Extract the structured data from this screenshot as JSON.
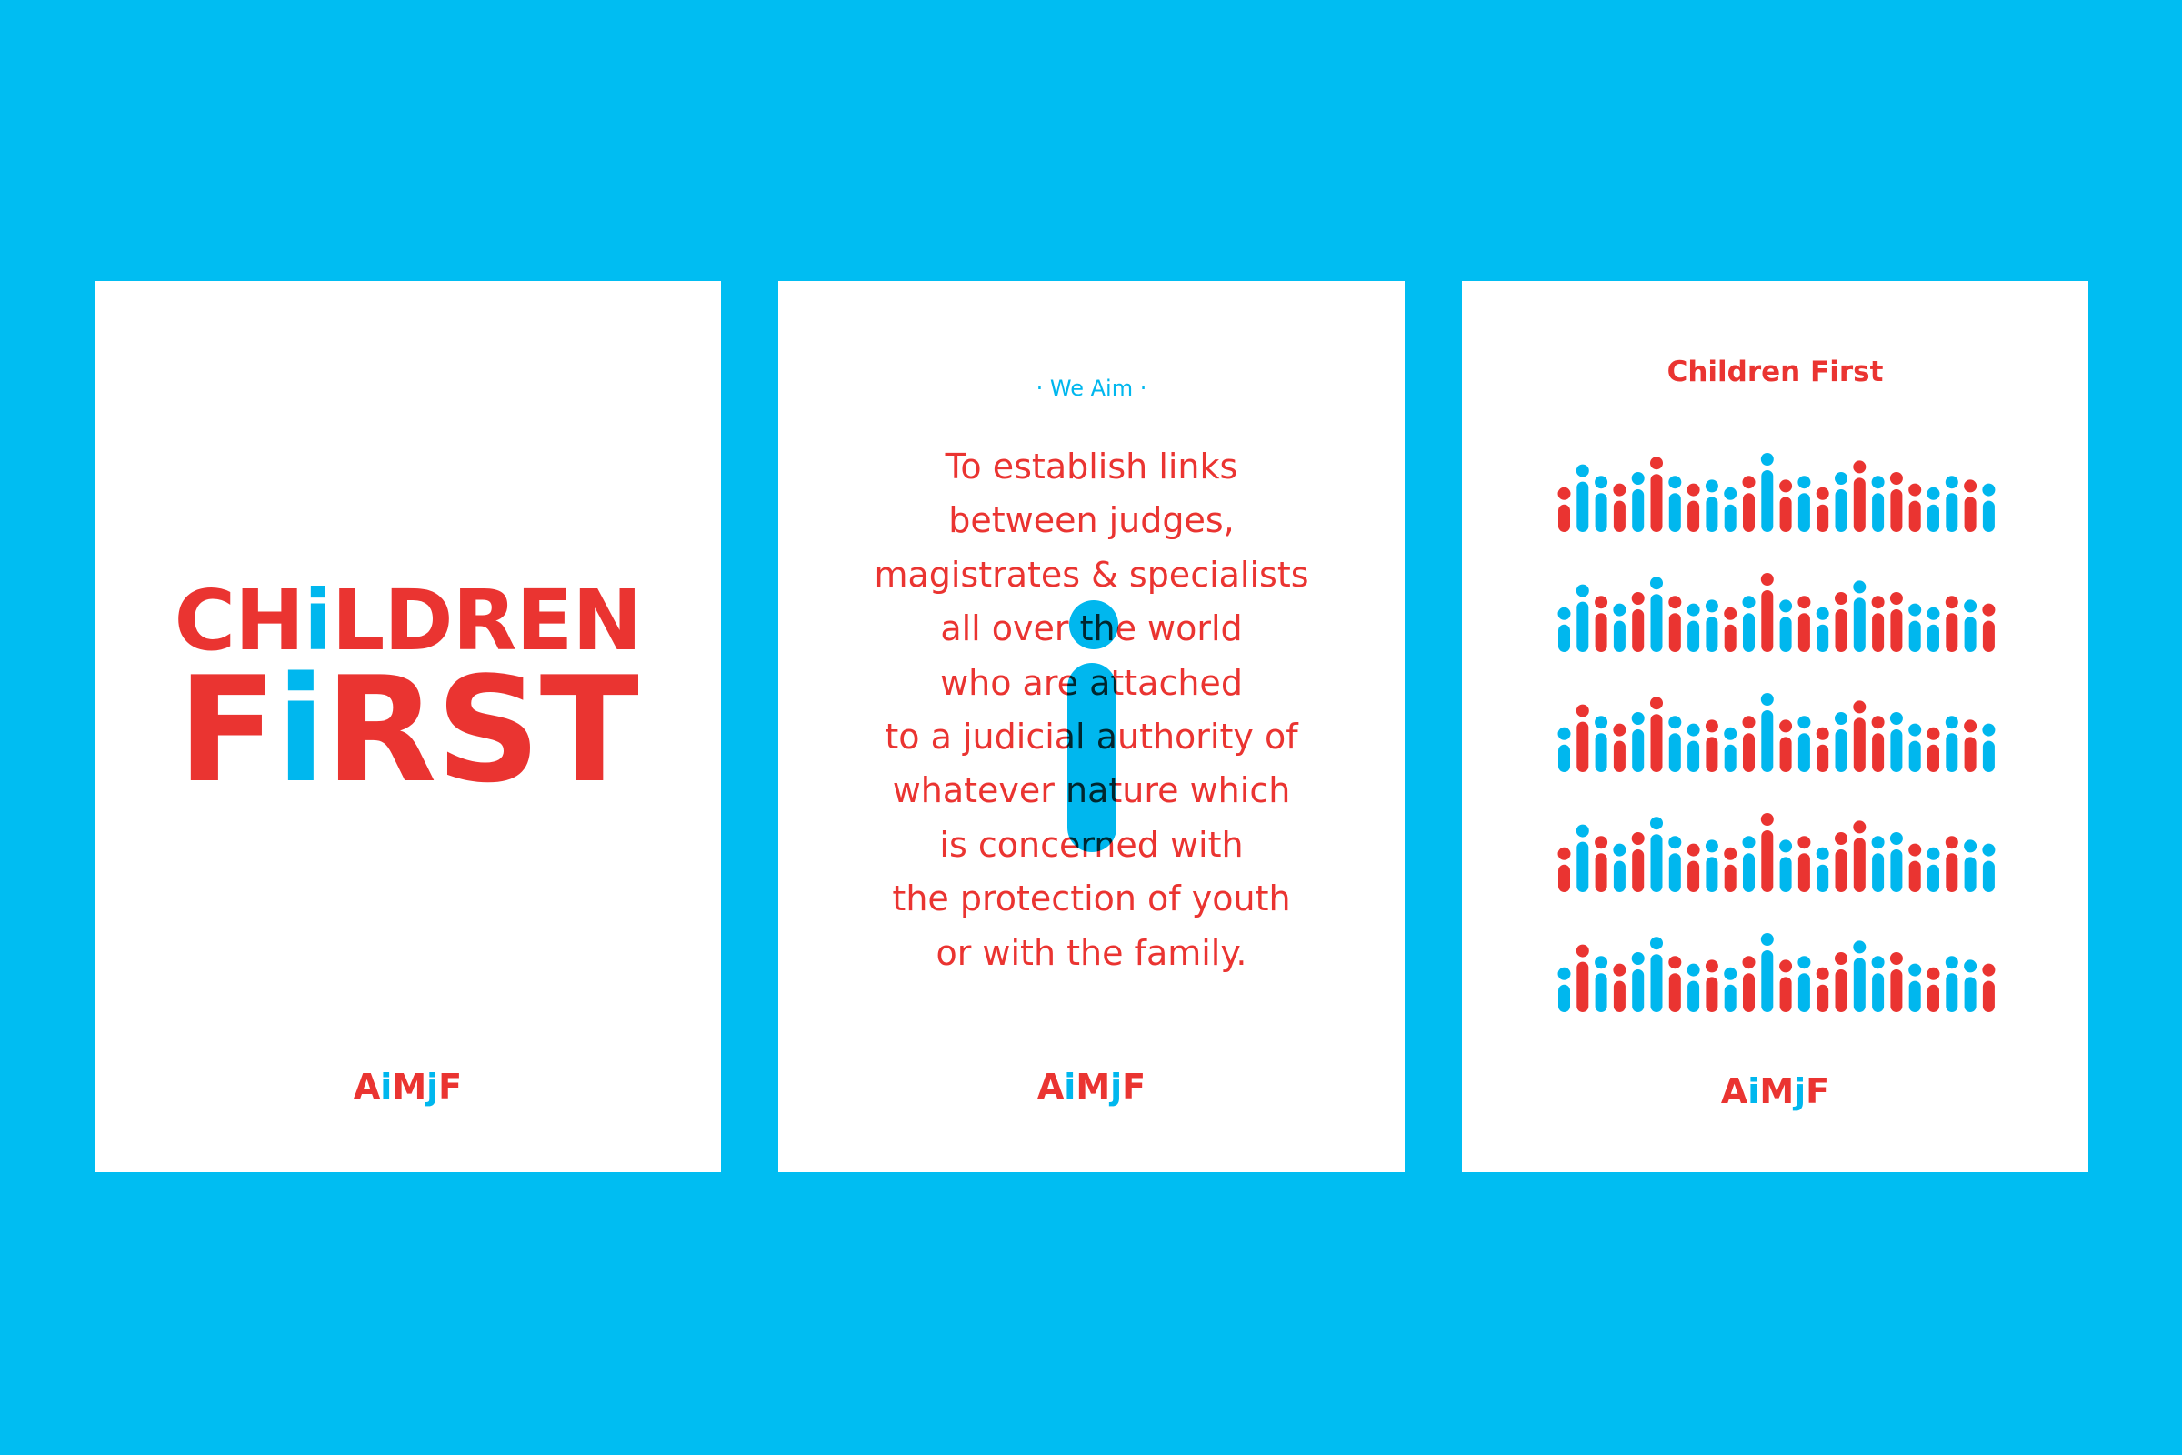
{
  "posters": [
    {
      "title": {
        "lines": [
          {
            "parts": [
              "CH",
              "i",
              "LDREN"
            ]
          },
          {
            "parts": [
              "F",
              "i",
              "RST"
            ]
          }
        ]
      },
      "logo": {
        "parts": [
          "A",
          "i",
          "M",
          "j",
          "F"
        ]
      }
    },
    {
      "kicker": "· We Aim ·",
      "body": [
        "To establish links",
        "between judges,",
        "magistrates & specialists",
        "all over the world",
        "who are attached",
        "to a judicial authority of",
        "whatever nature which",
        "is concerned with",
        "the protection of youth",
        "or with the family."
      ],
      "logo": {
        "parts": [
          "A",
          "i",
          "M",
          "j",
          "F"
        ]
      }
    },
    {
      "title": "Children First",
      "logo": {
        "parts": [
          "A",
          "i",
          "M",
          "j",
          "F"
        ]
      }
    }
  ]
}
